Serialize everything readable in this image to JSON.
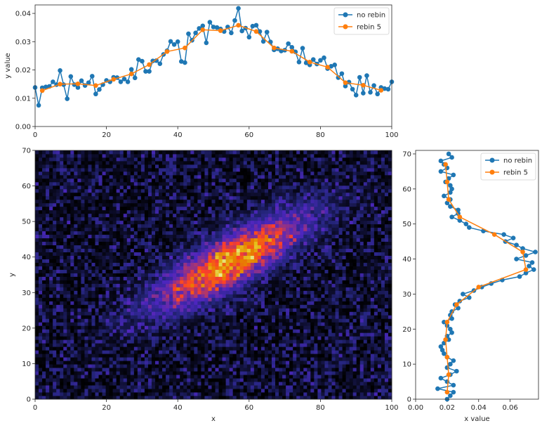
{
  "colors": {
    "no_rebin": "#1f77b4",
    "rebin_5": "#ff7f0e",
    "axes": "#262626",
    "legend_frame": "#cccccc"
  },
  "colormap": "CMRmap",
  "chart_data": [
    {
      "id": "top",
      "type": "line",
      "xlabel": "",
      "ylabel": "y value",
      "xlim": [
        0,
        100
      ],
      "ylim": [
        0.0,
        0.043
      ],
      "xticks": [
        0,
        20,
        40,
        60,
        80,
        100
      ],
      "xtick_labels": [
        "0",
        "20",
        "40",
        "60",
        "80",
        "100"
      ],
      "yticks": [
        0.0,
        0.01,
        0.02,
        0.03,
        0.04
      ],
      "ytick_labels": [
        "0.00",
        "0.01",
        "0.02",
        "0.03",
        "0.04"
      ],
      "grid": false,
      "legend": "top-right",
      "series": [
        {
          "name": "no rebin",
          "x": [
            0,
            1,
            2,
            3,
            4,
            5,
            6,
            7,
            8,
            9,
            10,
            11,
            12,
            13,
            14,
            15,
            16,
            17,
            18,
            19,
            20,
            21,
            22,
            23,
            24,
            25,
            26,
            27,
            28,
            29,
            30,
            31,
            32,
            33,
            34,
            35,
            36,
            37,
            38,
            39,
            40,
            41,
            42,
            43,
            44,
            45,
            46,
            47,
            48,
            49,
            50,
            51,
            52,
            53,
            54,
            55,
            56,
            57,
            58,
            59,
            60,
            61,
            62,
            63,
            64,
            65,
            66,
            67,
            68,
            69,
            70,
            71,
            72,
            73,
            74,
            75,
            76,
            77,
            78,
            79,
            80,
            81,
            82,
            83,
            84,
            85,
            86,
            87,
            88,
            89,
            90,
            91,
            92,
            93,
            94,
            95,
            96,
            97,
            98,
            99,
            100
          ],
          "y": [
            0.0138,
            0.0075,
            0.0137,
            0.014,
            0.0142,
            0.0158,
            0.0148,
            0.0198,
            0.0148,
            0.0098,
            0.0177,
            0.0148,
            0.0138,
            0.0162,
            0.0145,
            0.0155,
            0.0178,
            0.0115,
            0.0131,
            0.0148,
            0.0163,
            0.0158,
            0.0174,
            0.0173,
            0.0158,
            0.0168,
            0.0158,
            0.0202,
            0.0172,
            0.0237,
            0.0231,
            0.0195,
            0.0195,
            0.0232,
            0.0233,
            0.0222,
            0.0255,
            0.0268,
            0.0301,
            0.029,
            0.03,
            0.023,
            0.0226,
            0.0328,
            0.0305,
            0.0331,
            0.0347,
            0.0356,
            0.0296,
            0.0369,
            0.0352,
            0.035,
            0.0345,
            0.0336,
            0.0352,
            0.0331,
            0.0375,
            0.0418,
            0.0338,
            0.0348,
            0.0316,
            0.0355,
            0.0358,
            0.0336,
            0.0301,
            0.0334,
            0.0299,
            0.0271,
            0.0275,
            0.0267,
            0.027,
            0.0293,
            0.028,
            0.0264,
            0.0228,
            0.0277,
            0.0225,
            0.0218,
            0.0237,
            0.0221,
            0.0234,
            0.0243,
            0.0205,
            0.0213,
            0.0218,
            0.0173,
            0.0187,
            0.0143,
            0.0157,
            0.0132,
            0.0111,
            0.0174,
            0.0118,
            0.018,
            0.0121,
            0.0145,
            0.0115,
            0.0138,
            0.0134,
            0.0132,
            0.0158
          ]
        },
        {
          "name": "rebin 5",
          "x": [
            2,
            7,
            12,
            17,
            22,
            27,
            32,
            37,
            42,
            47,
            52,
            57,
            62,
            67,
            72,
            77,
            82,
            87,
            92,
            97
          ],
          "y": [
            0.0127,
            0.015,
            0.0151,
            0.0145,
            0.0167,
            0.0186,
            0.0219,
            0.0265,
            0.0278,
            0.0342,
            0.0339,
            0.0358,
            0.0336,
            0.0278,
            0.0266,
            0.0228,
            0.021,
            0.0155,
            0.0146,
            0.0128
          ]
        }
      ]
    },
    {
      "id": "heatmap",
      "type": "heatmap",
      "xlabel": "x",
      "ylabel": "y",
      "xlim": [
        0,
        100
      ],
      "ylim": [
        0,
        70
      ],
      "xticks": [
        0,
        20,
        40,
        60,
        80,
        100
      ],
      "xtick_labels": [
        "0",
        "20",
        "40",
        "60",
        "80",
        "100"
      ],
      "yticks": [
        0,
        10,
        20,
        30,
        40,
        50,
        60,
        70
      ],
      "ytick_labels": [
        "0",
        "10",
        "20",
        "30",
        "40",
        "50",
        "60",
        "70"
      ],
      "nx": 101,
      "ny": 71,
      "noise_level": 0.18,
      "peak": 1.0,
      "gaussian": {
        "x_center": 55,
        "y_center": 39,
        "sigma_along": 15,
        "sigma_across": 4.2,
        "angle_deg": 30
      }
    },
    {
      "id": "right",
      "type": "line",
      "xlabel": "x value",
      "ylabel": "",
      "xlim": [
        0.0,
        0.078
      ],
      "ylim": [
        0,
        71
      ],
      "xticks": [
        0.0,
        0.02,
        0.04,
        0.06
      ],
      "xtick_labels": [
        "0.00",
        "0.02",
        "0.04",
        "0.06"
      ],
      "yticks": [
        0,
        10,
        20,
        30,
        40,
        50,
        60,
        70
      ],
      "ytick_labels": [
        "0",
        "10",
        "20",
        "30",
        "40",
        "50",
        "60",
        "70"
      ],
      "grid": false,
      "legend": "top-right",
      "series": [
        {
          "name": "no rebin",
          "y": [
            0,
            1,
            2,
            3,
            4,
            5,
            6,
            7,
            8,
            9,
            10,
            11,
            12,
            13,
            14,
            15,
            16,
            17,
            18,
            19,
            20,
            21,
            22,
            23,
            24,
            25,
            26,
            27,
            28,
            29,
            30,
            31,
            32,
            33,
            34,
            35,
            36,
            37,
            38,
            39,
            40,
            41,
            42,
            43,
            44,
            45,
            46,
            47,
            48,
            49,
            50,
            51,
            52,
            53,
            54,
            55,
            56,
            57,
            58,
            59,
            60,
            61,
            62,
            63,
            64,
            65,
            66,
            67,
            68,
            69,
            70
          ],
          "x": [
            0.02,
            0.022,
            0.024,
            0.014,
            0.024,
            0.02,
            0.016,
            0.022,
            0.026,
            0.02,
            0.022,
            0.024,
            0.02,
            0.018,
            0.017,
            0.016,
            0.018,
            0.021,
            0.02,
            0.023,
            0.022,
            0.02,
            0.018,
            0.023,
            0.022,
            0.023,
            0.027,
            0.025,
            0.028,
            0.034,
            0.03,
            0.037,
            0.042,
            0.048,
            0.055,
            0.066,
            0.07,
            0.075,
            0.072,
            0.074,
            0.064,
            0.07,
            0.076,
            0.068,
            0.064,
            0.057,
            0.062,
            0.056,
            0.043,
            0.034,
            0.032,
            0.028,
            0.023,
            0.027,
            0.027,
            0.022,
            0.02,
            0.022,
            0.018,
            0.022,
            0.023,
            0.022,
            0.019,
            0.021,
            0.024,
            0.016,
            0.02,
            0.018,
            0.016,
            0.023,
            0.021
          ]
        },
        {
          "name": "rebin 5",
          "y": [
            2,
            7,
            12,
            17,
            22,
            27,
            32,
            37,
            42,
            47,
            52,
            57,
            62,
            67
          ],
          "x": [
            0.02,
            0.021,
            0.02,
            0.019,
            0.02,
            0.026,
            0.04,
            0.07,
            0.068,
            0.05,
            0.028,
            0.021,
            0.02,
            0.019
          ]
        }
      ]
    }
  ]
}
